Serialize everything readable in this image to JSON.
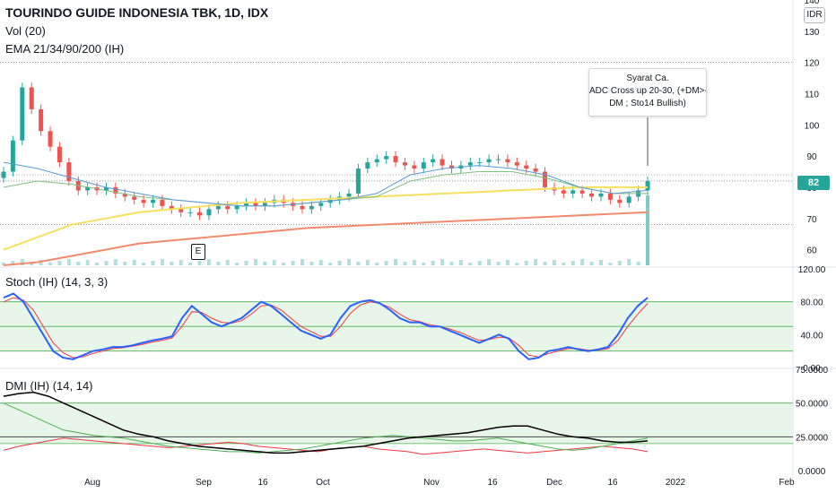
{
  "header": {
    "title": "TOURINDO GUIDE INDONESIA TBK, 1D, IDX",
    "volume_label": "Vol (20)",
    "ema_label": "EMA 21/34/90/200 (IH)",
    "currency": "IDR",
    "last_price": "82"
  },
  "annotation": {
    "lines": [
      "Syarat Ca.",
      "ADC Cross up 20-30, (+DM>-",
      "DM ; Sto14 Bullish)"
    ]
  },
  "earnings_marker": "E",
  "colors": {
    "up": "#26a69a",
    "down": "#ef5350",
    "ema21": "#5b9bd5",
    "ema34": "#7fbf7f",
    "ema90": "#f6e05e",
    "ema200": "#f28b6d",
    "stoch_k": "#2962ff",
    "stoch_d": "#f23645",
    "band_fill": "#e8f5e9",
    "band_line": "#4caf50",
    "adx": "#000000",
    "plus_di": "#4caf50",
    "minus_di": "#f23645"
  },
  "chart_data": [
    {
      "type": "candlestick",
      "title": "TOURINDO GUIDE INDONESIA TBK, 1D, IDX",
      "x_labels": [
        "Aug",
        "Sep",
        "16",
        "Oct",
        "Nov",
        "16",
        "Dec",
        "16",
        "2022",
        "Feb"
      ],
      "ylim": [
        55,
        140
      ],
      "y_ticks": [
        "140",
        "130",
        "120",
        "110",
        "100",
        "90",
        "80",
        "70",
        "60"
      ],
      "last_price": 82,
      "close_series_approx": [
        85,
        95,
        112,
        105,
        98,
        93,
        88,
        82,
        79,
        80,
        79,
        80,
        78,
        77,
        76,
        75,
        76,
        74,
        73,
        72,
        72,
        71,
        73,
        74,
        73,
        74,
        75,
        74,
        75,
        76,
        75,
        74,
        73,
        74,
        75,
        76,
        77,
        78,
        86,
        88,
        89,
        90,
        88,
        87,
        86,
        88,
        89,
        87,
        86,
        87,
        88,
        88,
        89,
        89,
        88,
        87,
        86,
        85,
        80,
        79,
        78,
        79,
        78,
        77,
        78,
        76,
        75,
        77,
        79,
        82
      ],
      "ema_labels": [
        "EMA 21",
        "EMA 34",
        "EMA 90",
        "EMA 200"
      ],
      "ema200_approx": [
        55,
        56,
        58,
        60,
        62,
        63,
        64,
        65,
        66,
        67,
        67.5,
        68,
        68.5,
        69,
        69.5,
        70,
        70.5,
        71,
        71.5,
        72
      ],
      "ema90_approx": [
        60,
        64,
        68,
        70,
        72,
        73,
        74,
        75,
        75.5,
        76,
        76.5,
        77,
        77.5,
        78,
        78.5,
        79,
        79.5,
        80,
        80,
        80
      ],
      "ema21_approx": [
        88,
        86,
        83,
        80,
        78,
        76,
        75,
        74,
        74,
        75,
        76,
        78,
        84,
        86,
        87,
        86,
        84,
        80,
        78,
        79
      ],
      "ema34_approx": [
        80,
        82,
        81,
        79,
        77,
        76,
        75,
        74,
        74,
        75,
        76,
        77,
        82,
        84,
        85,
        85,
        83,
        80,
        78,
        78
      ]
    },
    {
      "type": "line",
      "title": "Stoch (IH) (14, 3, 3)",
      "ylim": [
        0,
        120
      ],
      "y_ticks": [
        "120.00",
        "80.00",
        "40.00",
        "0.00"
      ],
      "bands": [
        20,
        50,
        80
      ],
      "series": [
        {
          "name": "%K",
          "values": [
            85,
            90,
            80,
            60,
            40,
            20,
            12,
            10,
            15,
            20,
            22,
            25,
            25,
            27,
            30,
            33,
            35,
            38,
            60,
            75,
            65,
            55,
            50,
            55,
            60,
            70,
            80,
            75,
            65,
            55,
            45,
            40,
            35,
            40,
            60,
            75,
            80,
            82,
            78,
            70,
            60,
            55,
            55,
            50,
            50,
            45,
            40,
            35,
            30,
            35,
            40,
            35,
            20,
            10,
            12,
            20,
            22,
            25,
            22,
            20,
            22,
            25,
            40,
            60,
            75,
            85
          ]
        },
        {
          "name": "%D",
          "values": [
            80,
            85,
            82,
            70,
            50,
            30,
            18,
            12,
            13,
            17,
            20,
            23,
            24,
            26,
            28,
            31,
            33,
            36,
            50,
            68,
            67,
            60,
            55,
            54,
            57,
            65,
            75,
            76,
            70,
            60,
            50,
            44,
            38,
            38,
            50,
            66,
            76,
            80,
            78,
            73,
            65,
            58,
            56,
            52,
            50,
            47,
            43,
            38,
            33,
            34,
            37,
            36,
            27,
            15,
            13,
            17,
            20,
            23,
            23,
            21,
            21,
            23,
            33,
            50,
            65,
            78
          ]
        }
      ]
    },
    {
      "type": "line",
      "title": "DMI (IH) (14, 14)",
      "ylim": [
        0,
        75
      ],
      "y_ticks": [
        "75.0000",
        "50.0000",
        "25.0000",
        "0.0000"
      ],
      "bands": [
        20,
        25,
        50
      ],
      "series": [
        {
          "name": "ADX",
          "values": [
            55,
            57,
            58,
            55,
            50,
            45,
            40,
            35,
            30,
            27,
            25,
            22,
            20,
            18,
            17,
            16,
            15,
            14,
            13,
            13,
            14,
            15,
            16,
            17,
            18,
            20,
            22,
            24,
            25,
            26,
            27,
            28,
            30,
            32,
            33,
            33,
            30,
            27,
            25,
            24,
            22,
            21,
            21,
            22
          ]
        },
        {
          "name": "+DI",
          "values": [
            50,
            45,
            40,
            35,
            30,
            28,
            26,
            25,
            24,
            22,
            20,
            18,
            17,
            16,
            15,
            14,
            14,
            13,
            14,
            15,
            16,
            18,
            20,
            22,
            24,
            25,
            26,
            25,
            24,
            23,
            22,
            22,
            23,
            24,
            22,
            20,
            18,
            16,
            15,
            16,
            18,
            20,
            22,
            24
          ]
        },
        {
          "name": "-DI",
          "values": [
            15,
            18,
            20,
            22,
            24,
            23,
            22,
            21,
            20,
            19,
            18,
            17,
            18,
            19,
            20,
            21,
            20,
            18,
            17,
            16,
            15,
            14,
            16,
            17,
            18,
            16,
            15,
            14,
            12,
            13,
            14,
            15,
            16,
            15,
            14,
            13,
            14,
            15,
            16,
            17,
            18,
            17,
            16,
            14
          ]
        }
      ]
    }
  ]
}
